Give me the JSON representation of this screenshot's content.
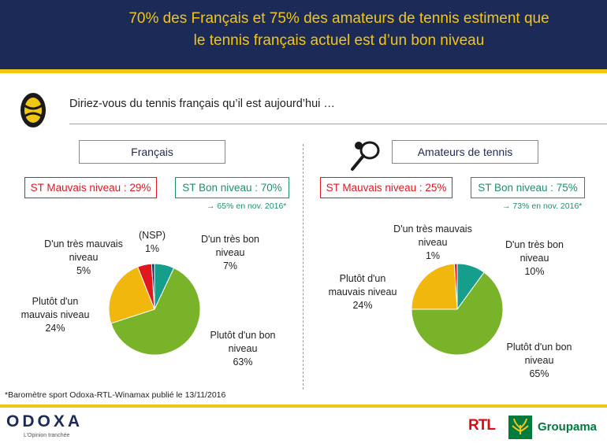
{
  "header": {
    "title_line1": "70% des Français et 75% des amateurs de tennis estiment que",
    "title_line2": "le tennis français actuel est d’un bon niveau"
  },
  "question": "Diriez-vous du tennis français qu’il est aujourd’hui …",
  "icons": {
    "question": "tennis-ball-icon",
    "racket": "tennis-racket-icon"
  },
  "colors": {
    "navy": "#1c2a57",
    "yellow": "#f3c515",
    "red": "#e0171f",
    "green": "#1e8f6b",
    "slice_tres_bon": "#169e8c",
    "slice_bon": "#79b32a",
    "slice_mauvais": "#f2b70c",
    "slice_tres_mauvais": "#e0171f",
    "slice_nsp": "#1c2a57"
  },
  "groups": [
    {
      "name": "Français",
      "bad_summary": "ST Mauvais niveau : 29%",
      "good_summary": "ST Bon niveau : 70%",
      "note": "→ 65% en nov. 2016*"
    },
    {
      "name": "Amateurs de tennis",
      "bad_summary": "ST Mauvais niveau : 25%",
      "good_summary": "ST Bon niveau : 75%",
      "note": "→ 73% en nov. 2016*"
    }
  ],
  "chart_data": [
    {
      "type": "pie",
      "title": "Français",
      "slices": [
        {
          "label": "D'un très bon niveau",
          "value": 7,
          "display": "D'un très bon\nniveau\n7%"
        },
        {
          "label": "Plutôt d'un bon niveau",
          "value": 63,
          "display": "Plutôt d'un bon\nniveau\n63%"
        },
        {
          "label": "Plutôt d'un mauvais niveau",
          "value": 24,
          "display": "Plutôt d'un\nmauvais niveau\n24%"
        },
        {
          "label": "D'un très mauvais niveau",
          "value": 5,
          "display": "D'un très mauvais\nniveau\n5%"
        },
        {
          "label": "(NSP)",
          "value": 1,
          "display": "(NSP)\n1%"
        }
      ]
    },
    {
      "type": "pie",
      "title": "Amateurs de tennis",
      "slices": [
        {
          "label": "D'un très bon niveau",
          "value": 10,
          "display": "D'un très bon\nniveau\n10%"
        },
        {
          "label": "Plutôt d'un bon niveau",
          "value": 65,
          "display": "Plutôt d'un bon\nniveau\n65%"
        },
        {
          "label": "Plutôt d'un mauvais niveau",
          "value": 24,
          "display": "Plutôt d'un\nmauvais niveau\n24%"
        },
        {
          "label": "D'un très mauvais niveau",
          "value": 1,
          "display": "D'un très mauvais\nniveau\n1%"
        }
      ]
    }
  ],
  "footnote": "*Baromètre sport Odoxa-RTL-Winamax publié le 13/11/2016",
  "footer": {
    "brand": "ODOXA",
    "tagline": "L’Opinion tranchée",
    "partner1": "RTL",
    "partner2": "Groupama"
  }
}
